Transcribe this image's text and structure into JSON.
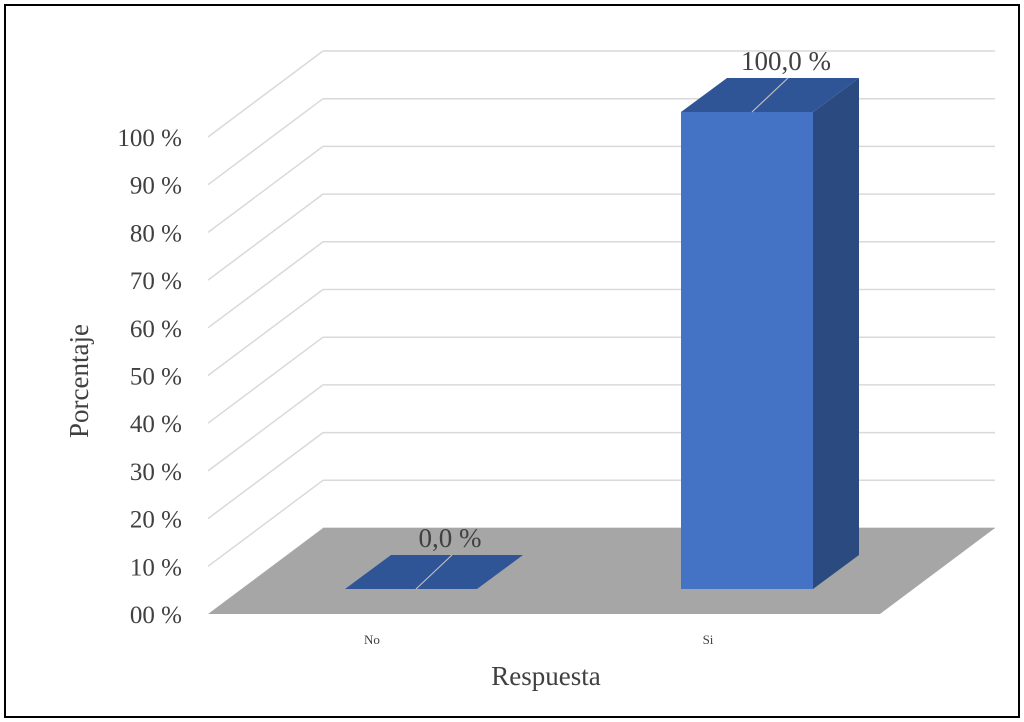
{
  "chart_data": {
    "type": "bar",
    "style": "3d-column",
    "title": "",
    "xlabel": "Respuesta",
    "ylabel": "Porcentaje",
    "categories": [
      "No",
      "Si"
    ],
    "values": [
      0.0,
      100.0
    ],
    "data_labels": [
      "0,0 %",
      "100,0 %"
    ],
    "ylim": [
      0,
      100
    ],
    "yticks": [
      0,
      10,
      20,
      30,
      40,
      50,
      60,
      70,
      80,
      90,
      100
    ],
    "ytick_labels": [
      "00 %",
      "10 %",
      "20 %",
      "30 %",
      "40 %",
      "50 %",
      "60 %",
      "70 %",
      "80 %",
      "90 %",
      "100 %"
    ],
    "grid": true,
    "legend": "none",
    "colors": {
      "bar_front": "#4472c4",
      "bar_top": "#2f5597",
      "bar_side": "#2b4a80",
      "floor": "#a6a6a6",
      "grid": "#d9d9d9",
      "text": "#404040"
    }
  }
}
